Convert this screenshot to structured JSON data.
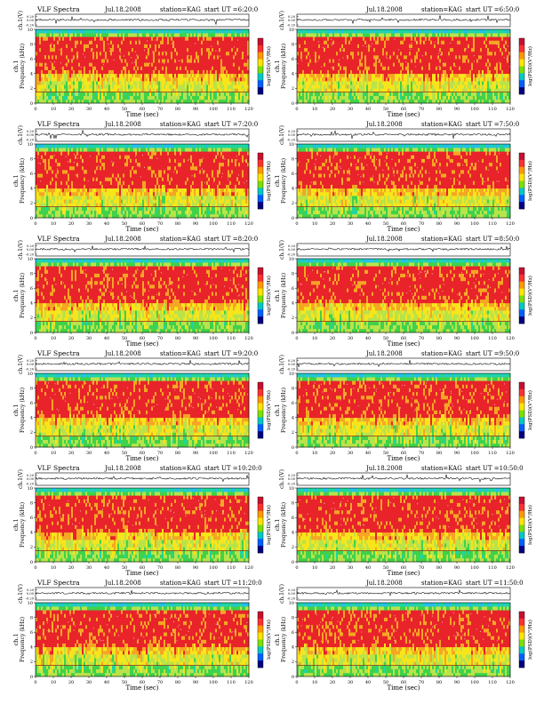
{
  "figure": {
    "chart_type_note": "spectrogram"
  },
  "chart_data": [
    {
      "type": "heatmap",
      "header": {
        "title": "VLF Spectra",
        "date": "Jul.18.2008",
        "station": "station=KAG",
        "start": "start UT =6:20:0"
      },
      "xlabel": "Time (sec)",
      "ylabel": "Frequency (kHz)",
      "top_ylabel": "ch.1(V)",
      "side_label": "ch.1",
      "colorbar_label": "log(PSD)(V²/Hz)",
      "x_ticks": [
        0,
        10,
        20,
        30,
        40,
        50,
        60,
        70,
        80,
        90,
        100,
        110,
        120
      ],
      "y_ticks": [
        0,
        2,
        4,
        6,
        8,
        10
      ],
      "top_y_ticks": [
        "0.20",
        "0.00",
        "-0.20"
      ],
      "xlim": [
        0,
        120
      ],
      "ylim": [
        0,
        10
      ]
    },
    {
      "type": "heatmap",
      "header": {
        "title": "",
        "date": "Jul.18.2008",
        "station": "station=KAG",
        "start": "start UT =6:50:0"
      },
      "xlabel": "Time (sec)",
      "ylabel": "Frequency (kHz)",
      "top_ylabel": "ch.1(V)",
      "side_label": "ch.1",
      "colorbar_label": "log(PSD)(V²/Hz)",
      "x_ticks": [
        0,
        10,
        20,
        30,
        40,
        50,
        60,
        70,
        80,
        90,
        100,
        110,
        120
      ],
      "y_ticks": [
        0,
        2,
        4,
        6,
        8,
        10
      ],
      "top_y_ticks": [
        "0.20",
        "0.00",
        "-0.20"
      ],
      "xlim": [
        0,
        120
      ],
      "ylim": [
        0,
        10
      ]
    },
    {
      "type": "heatmap",
      "header": {
        "title": "VLF Spectra",
        "date": "Jul.18.2008",
        "station": "station=KAG",
        "start": "start UT =7:20:0"
      },
      "xlabel": "Time (sec)",
      "ylabel": "Frequency (kHz)",
      "top_ylabel": "ch.1(V)",
      "side_label": "ch.1",
      "colorbar_label": "log(PSD)(V²/Hz)",
      "x_ticks": [
        0,
        10,
        20,
        30,
        40,
        50,
        60,
        70,
        80,
        90,
        100,
        110,
        120
      ],
      "y_ticks": [
        0,
        2,
        4,
        6,
        8,
        10
      ],
      "top_y_ticks": [
        "0.20",
        "0.00",
        "-0.20"
      ],
      "xlim": [
        0,
        120
      ],
      "ylim": [
        0,
        10
      ]
    },
    {
      "type": "heatmap",
      "header": {
        "title": "",
        "date": "Jul.18.2008",
        "station": "station=KAG",
        "start": "start UT =7:50:0"
      },
      "xlabel": "Time (sec)",
      "ylabel": "Frequency (kHz)",
      "top_ylabel": "ch.1(V)",
      "side_label": "ch.1",
      "colorbar_label": "log(PSD)(V²/Hz)",
      "x_ticks": [
        0,
        10,
        20,
        30,
        40,
        50,
        60,
        70,
        80,
        90,
        100,
        110,
        120
      ],
      "y_ticks": [
        0,
        2,
        4,
        6,
        8,
        10
      ],
      "top_y_ticks": [
        "0.20",
        "0.00",
        "-0.20"
      ],
      "xlim": [
        0,
        120
      ],
      "ylim": [
        0,
        10
      ]
    },
    {
      "type": "heatmap",
      "header": {
        "title": "VLF Spectra",
        "date": "Jul.18.2008",
        "station": "station=KAG",
        "start": "start UT =8:20:0"
      },
      "xlabel": "Time (sec)",
      "ylabel": "Frequency (kHz)",
      "top_ylabel": "ch.1(V)",
      "side_label": "ch.1",
      "colorbar_label": "log(PSD)(V²/Hz)",
      "x_ticks": [
        0,
        10,
        20,
        30,
        40,
        50,
        60,
        70,
        80,
        90,
        100,
        110,
        120
      ],
      "y_ticks": [
        0,
        2,
        4,
        6,
        8,
        10
      ],
      "top_y_ticks": [
        "0.20",
        "0.00",
        "-0.20"
      ],
      "xlim": [
        0,
        120
      ],
      "ylim": [
        0,
        10
      ]
    },
    {
      "type": "heatmap",
      "header": {
        "title": "",
        "date": "Jul.18.2008",
        "station": "station=KAG",
        "start": "start UT =8:50:0"
      },
      "xlabel": "Time (sec)",
      "ylabel": "Frequency (kHz)",
      "top_ylabel": "ch.1(V)",
      "side_label": "ch.1",
      "colorbar_label": "log(PSD)(V²/Hz)",
      "x_ticks": [
        0,
        10,
        20,
        30,
        40,
        50,
        60,
        70,
        80,
        90,
        100,
        110,
        120
      ],
      "y_ticks": [
        0,
        2,
        4,
        6,
        8,
        10
      ],
      "top_y_ticks": [
        "0.20",
        "0.00",
        "-0.20"
      ],
      "xlim": [
        0,
        120
      ],
      "ylim": [
        0,
        10
      ]
    },
    {
      "type": "heatmap",
      "header": {
        "title": "VLF Spectra",
        "date": "Jul.18.2008",
        "station": "station=KAG",
        "start": "start UT =9:20:0"
      },
      "xlabel": "Time (sec)",
      "ylabel": "Frequency (kHz)",
      "top_ylabel": "ch.1(V)",
      "side_label": "ch.1",
      "colorbar_label": "log(PSD)(V²/Hz)",
      "x_ticks": [
        0,
        10,
        20,
        30,
        40,
        50,
        60,
        70,
        80,
        90,
        100,
        110,
        120
      ],
      "y_ticks": [
        0,
        2,
        4,
        6,
        8,
        10
      ],
      "top_y_ticks": [
        "0.20",
        "0.00",
        "-0.20"
      ],
      "xlim": [
        0,
        120
      ],
      "ylim": [
        0,
        10
      ]
    },
    {
      "type": "heatmap",
      "header": {
        "title": "",
        "date": "Jul.18.2008",
        "station": "station=KAG",
        "start": "start UT =9:50:0"
      },
      "xlabel": "Time (sec)",
      "ylabel": "Frequency (kHz)",
      "top_ylabel": "ch.1(V)",
      "side_label": "ch.1",
      "colorbar_label": "log(PSD)(V²/Hz)",
      "x_ticks": [
        0,
        10,
        20,
        30,
        40,
        50,
        60,
        70,
        80,
        90,
        100,
        110,
        120
      ],
      "y_ticks": [
        0,
        2,
        4,
        6,
        8,
        10
      ],
      "top_y_ticks": [
        "0.20",
        "0.00",
        "-0.20"
      ],
      "xlim": [
        0,
        120
      ],
      "ylim": [
        0,
        10
      ]
    },
    {
      "type": "heatmap",
      "header": {
        "title": "VLF Spectra",
        "date": "Jul.18.2008",
        "station": "station=KAG",
        "start": "start UT =10:20:0"
      },
      "xlabel": "Time (sec)",
      "ylabel": "Frequency (kHz)",
      "top_ylabel": "ch.1(V)",
      "side_label": "ch.1",
      "colorbar_label": "log(PSD)(V²/Hz)",
      "x_ticks": [
        0,
        10,
        20,
        30,
        40,
        50,
        60,
        70,
        80,
        90,
        100,
        110,
        120
      ],
      "y_ticks": [
        0,
        2,
        4,
        6,
        8,
        10
      ],
      "top_y_ticks": [
        "0.20",
        "0.00",
        "-0.20"
      ],
      "xlim": [
        0,
        120
      ],
      "ylim": [
        0,
        10
      ]
    },
    {
      "type": "heatmap",
      "header": {
        "title": "",
        "date": "Jul.18.2008",
        "station": "station=KAG",
        "start": "start UT =10:50:0"
      },
      "xlabel": "Time (sec)",
      "ylabel": "Frequency (kHz)",
      "top_ylabel": "ch.1(V)",
      "side_label": "ch.1",
      "colorbar_label": "log(PSD)(V²/Hz)",
      "x_ticks": [
        0,
        10,
        20,
        30,
        40,
        50,
        60,
        70,
        80,
        90,
        100,
        110,
        120
      ],
      "y_ticks": [
        0,
        2,
        4,
        6,
        8,
        10
      ],
      "top_y_ticks": [
        "0.20",
        "0.00",
        "-0.20"
      ],
      "xlim": [
        0,
        120
      ],
      "ylim": [
        0,
        10
      ]
    },
    {
      "type": "heatmap",
      "header": {
        "title": "VLF Spectra",
        "date": "Jul.18.2008",
        "station": "station=KAG",
        "start": "start UT =11:20:0"
      },
      "xlabel": "Time (sec)",
      "ylabel": "Frequency (kHz)",
      "top_ylabel": "ch.1(V)",
      "side_label": "ch.1",
      "colorbar_label": "log(PSD)(V²/Hz)",
      "x_ticks": [
        0,
        10,
        20,
        30,
        40,
        50,
        60,
        70,
        80,
        90,
        100,
        110,
        120
      ],
      "y_ticks": [
        0,
        2,
        4,
        6,
        8,
        10
      ],
      "top_y_ticks": [
        "0.20",
        "0.00",
        "-0.20"
      ],
      "xlim": [
        0,
        120
      ],
      "ylim": [
        0,
        10
      ]
    },
    {
      "type": "heatmap",
      "header": {
        "title": "",
        "date": "Jul.18.2008",
        "station": "station=KAG",
        "start": "start UT =11:50:0"
      },
      "xlabel": "Time (sec)",
      "ylabel": "Frequency (kHz)",
      "top_ylabel": "ch.1(V)",
      "side_label": "ch.1",
      "colorbar_label": "log(PSD)(V²/Hz)",
      "x_ticks": [
        0,
        10,
        20,
        30,
        40,
        50,
        60,
        70,
        80,
        90,
        100,
        110,
        120
      ],
      "y_ticks": [
        0,
        2,
        4,
        6,
        8,
        10
      ],
      "top_y_ticks": [
        "0.20",
        "0.00",
        "-0.20"
      ],
      "xlim": [
        0,
        120
      ],
      "ylim": [
        0,
        10
      ]
    }
  ],
  "colors": {
    "spectrogram_palette": [
      "#e8232a",
      "#f5a623",
      "#f7e51b",
      "#b9e34a",
      "#3fd24a",
      "#1fd6a0",
      "#25c0e8"
    ],
    "colorbar_palette": [
      "#c8102e",
      "#ff3030",
      "#ff9a00",
      "#ffe600",
      "#7de000",
      "#00c8c8",
      "#0060ff",
      "#000080"
    ],
    "trace_color": "#000000"
  }
}
